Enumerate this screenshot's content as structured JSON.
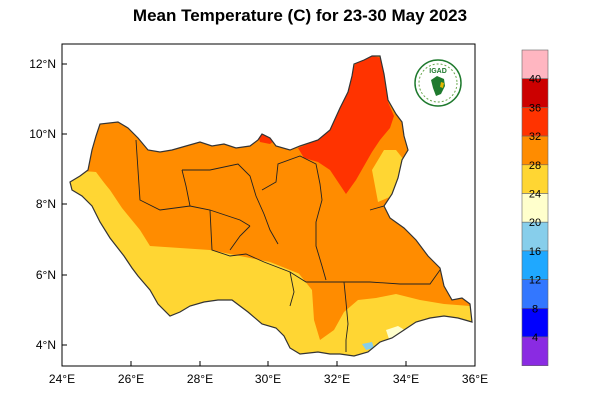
{
  "title": "Mean Temperature (C) for 23-30 May 2023",
  "logo": {
    "text": "IGAD"
  },
  "x_ticks": [
    "24°E",
    "26°E",
    "28°E",
    "30°E",
    "32°E",
    "34°E",
    "36°E"
  ],
  "y_ticks": [
    "12°N",
    "10°N",
    "8°N",
    "6°N",
    "4°N"
  ],
  "colorbar": {
    "labels": [
      "40",
      "36",
      "32",
      "28",
      "24",
      "20",
      "16",
      "12",
      "8",
      "4"
    ],
    "colors": [
      "#ffb6c1",
      "#cc0000",
      "#ff3300",
      "#ff8c00",
      "#ffd633",
      "#ffffcc",
      "#87ceeb",
      "#1fa8ff",
      "#3377ff",
      "#0000ff",
      "#8a2be2"
    ]
  }
}
